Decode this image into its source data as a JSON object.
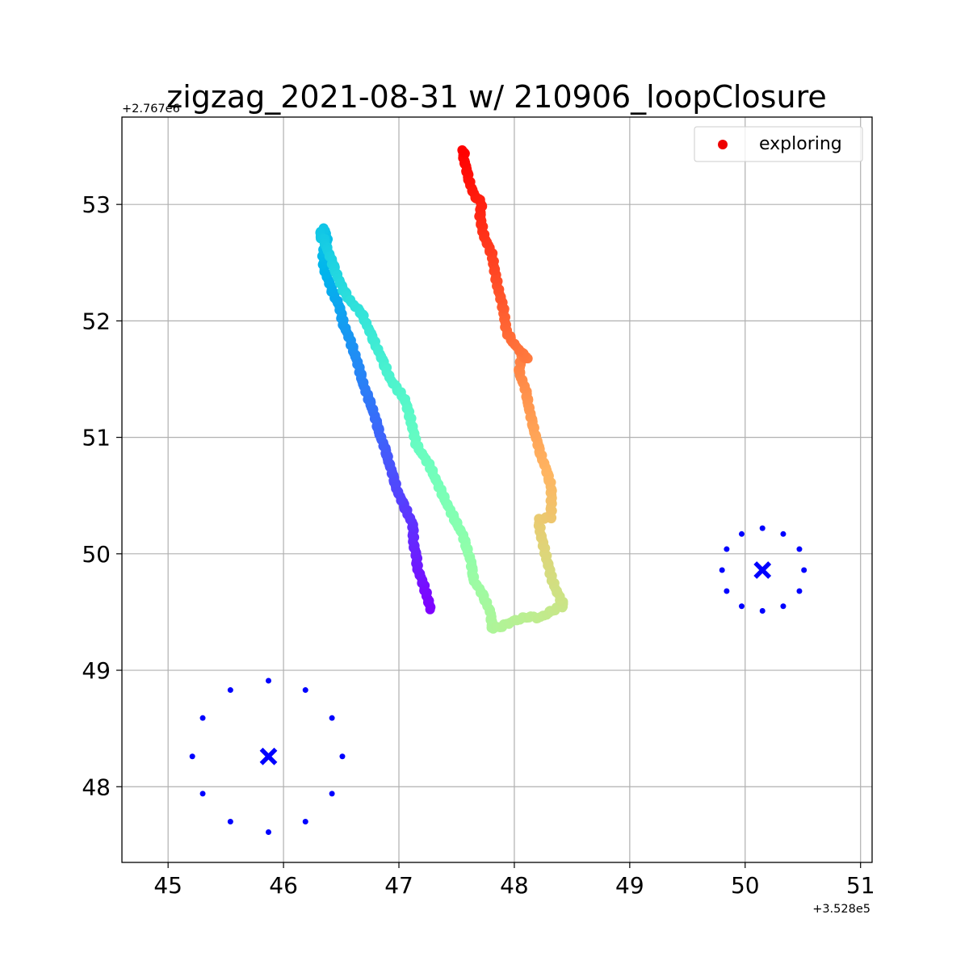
{
  "chart_data": {
    "type": "scatter",
    "title": "zigzag_2021-08-31 w/ 210906_loopClosure",
    "x_offset_label": "+3.528e5",
    "y_offset_label": "+2.767e6",
    "xlabel": "",
    "ylabel": "",
    "xlim": [
      44.6,
      51.1
    ],
    "ylim": [
      47.35,
      53.75
    ],
    "xticks": [
      "45",
      "46",
      "47",
      "48",
      "49",
      "50",
      "51"
    ],
    "xtick_values": [
      45,
      46,
      47,
      48,
      49,
      50,
      51
    ],
    "yticks": [
      "48",
      "49",
      "50",
      "51",
      "52",
      "53"
    ],
    "ytick_values": [
      48,
      49,
      50,
      51,
      52,
      53
    ],
    "grid": true,
    "legend": {
      "position": "top-right",
      "entries": [
        {
          "label": "exploring",
          "color": "#ee0000"
        }
      ]
    },
    "series": [
      {
        "name": "exploring",
        "colormap": "rainbow",
        "path": [
          [
            47.27,
            49.53
          ],
          [
            47.25,
            49.62
          ],
          [
            47.21,
            49.74
          ],
          [
            47.16,
            49.88
          ],
          [
            47.15,
            49.99
          ],
          [
            47.13,
            50.06
          ],
          [
            47.12,
            50.25
          ],
          [
            47.07,
            50.36
          ],
          [
            46.99,
            50.53
          ],
          [
            46.96,
            50.63
          ],
          [
            46.88,
            50.9
          ],
          [
            46.84,
            51.01
          ],
          [
            46.77,
            51.25
          ],
          [
            46.7,
            51.43
          ],
          [
            46.63,
            51.68
          ],
          [
            46.56,
            51.88
          ],
          [
            46.52,
            51.97
          ],
          [
            46.48,
            52.14
          ],
          [
            46.42,
            52.26
          ],
          [
            46.35,
            52.46
          ],
          [
            46.34,
            52.58
          ],
          [
            46.38,
            52.68
          ],
          [
            46.35,
            52.8
          ],
          [
            46.31,
            52.73
          ],
          [
            46.35,
            52.7
          ],
          [
            46.43,
            52.48
          ],
          [
            46.51,
            52.28
          ],
          [
            46.58,
            52.17
          ],
          [
            46.68,
            52.06
          ],
          [
            46.76,
            51.88
          ],
          [
            46.85,
            51.68
          ],
          [
            46.93,
            51.49
          ],
          [
            47.05,
            51.33
          ],
          [
            47.1,
            51.16
          ],
          [
            47.15,
            50.94
          ],
          [
            47.27,
            50.75
          ],
          [
            47.35,
            50.57
          ],
          [
            47.45,
            50.36
          ],
          [
            47.55,
            50.17
          ],
          [
            47.62,
            49.95
          ],
          [
            47.65,
            49.77
          ],
          [
            47.72,
            49.66
          ],
          [
            47.79,
            49.51
          ],
          [
            47.81,
            49.36
          ],
          [
            47.9,
            49.38
          ],
          [
            48.01,
            49.43
          ],
          [
            48.12,
            49.46
          ],
          [
            48.22,
            49.45
          ],
          [
            48.36,
            49.53
          ],
          [
            48.43,
            49.55
          ],
          [
            48.37,
            49.67
          ],
          [
            48.32,
            49.8
          ],
          [
            48.27,
            50.0
          ],
          [
            48.23,
            50.16
          ],
          [
            48.21,
            50.3
          ],
          [
            48.32,
            50.31
          ],
          [
            48.32,
            50.48
          ],
          [
            48.32,
            50.58
          ],
          [
            48.27,
            50.74
          ],
          [
            48.22,
            50.88
          ],
          [
            48.18,
            51.03
          ],
          [
            48.14,
            51.19
          ],
          [
            48.1,
            51.4
          ],
          [
            48.04,
            51.57
          ],
          [
            48.07,
            51.73
          ],
          [
            48.11,
            51.67
          ],
          [
            48.0,
            51.8
          ],
          [
            47.93,
            51.91
          ],
          [
            47.91,
            52.08
          ],
          [
            47.86,
            52.28
          ],
          [
            47.83,
            52.42
          ],
          [
            47.81,
            52.56
          ],
          [
            47.74,
            52.72
          ],
          [
            47.7,
            52.9
          ],
          [
            47.72,
            53.01
          ],
          [
            47.65,
            53.08
          ],
          [
            47.61,
            53.2
          ],
          [
            47.56,
            53.4
          ],
          [
            47.57,
            53.46
          ],
          [
            47.53,
            53.46
          ]
        ]
      }
    ],
    "markers": [
      {
        "center": [
          45.87,
          48.26
        ],
        "radius_ring": [
          [
            45.87,
            48.91
          ],
          [
            46.19,
            48.83
          ],
          [
            46.42,
            48.59
          ],
          [
            46.51,
            48.26
          ],
          [
            46.42,
            47.94
          ],
          [
            46.19,
            47.7
          ],
          [
            45.87,
            47.61
          ],
          [
            45.54,
            47.7
          ],
          [
            45.3,
            47.94
          ],
          [
            45.21,
            48.26
          ],
          [
            45.3,
            48.59
          ],
          [
            45.54,
            48.83
          ]
        ],
        "color": "#0000ff"
      },
      {
        "center": [
          50.15,
          49.86
        ],
        "radius_ring": [
          [
            50.15,
            50.22
          ],
          [
            50.33,
            50.17
          ],
          [
            50.47,
            50.04
          ],
          [
            50.51,
            49.86
          ],
          [
            50.47,
            49.68
          ],
          [
            50.33,
            49.55
          ],
          [
            50.15,
            49.51
          ],
          [
            49.97,
            49.55
          ],
          [
            49.84,
            49.68
          ],
          [
            49.8,
            49.86
          ],
          [
            49.84,
            50.04
          ],
          [
            49.97,
            50.17
          ]
        ],
        "color": "#0000ff"
      }
    ]
  }
}
